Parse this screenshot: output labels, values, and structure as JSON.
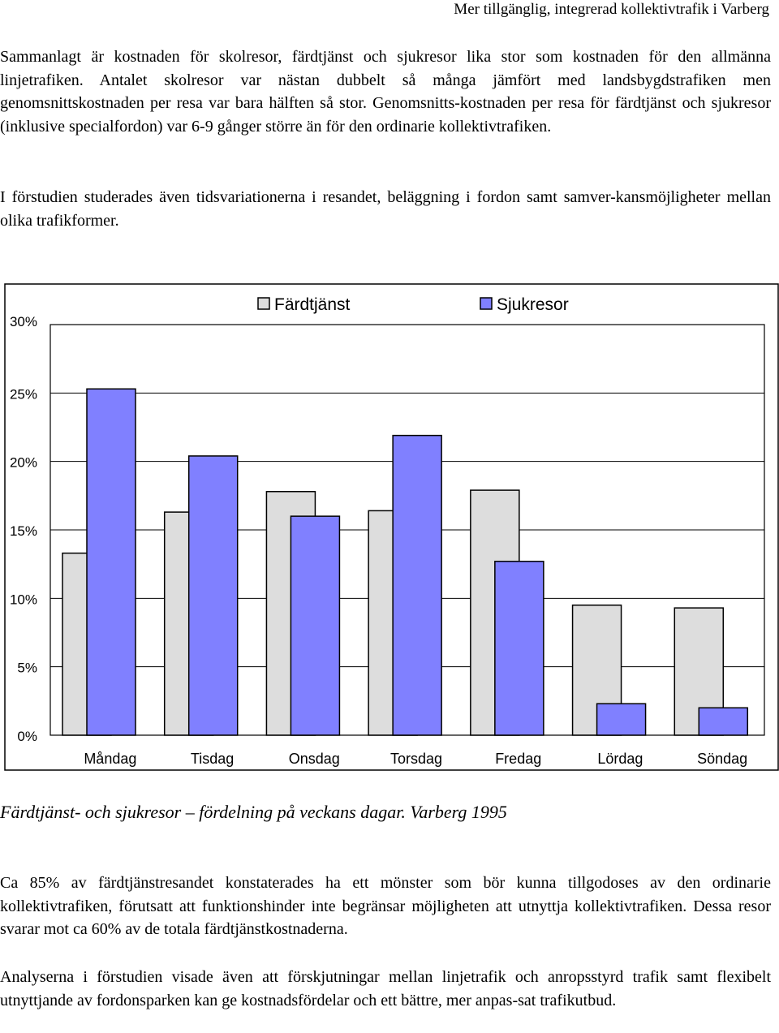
{
  "header": {
    "running_title": "Mer tillgänglig, integrerad kollektivtrafik i Varberg"
  },
  "paragraphs": {
    "p1": "Sammanlagt är kostnaden för skolresor, färdtjänst och sjukresor lika stor som kostnaden för den allmänna linjetrafiken. Antalet skolresor var nästan dubbelt så många jämfört med landsbygdstrafiken men genomsnittskostnaden per resa var bara hälften så stor. Genomsnitts-kostnaden per resa för färdtjänst och sjukresor (inklusive specialfordon) var 6-9 gånger större än för den ordinarie kollektivtrafiken.",
    "p2": "I förstudien studerades även tidsvariationerna i resandet, beläggning i fordon samt samver-kansmöjligheter mellan olika trafikformer.",
    "p3": "Ca 85% av färdtjänstresandet konstaterades ha ett mönster som bör kunna tillgodoses av den ordinarie kollektivtrafiken, förutsatt att funktionshinder inte begränsar möjligheten att utnyttja kollektivtrafiken. Dessa resor svarar mot ca 60% av de totala färdtjänstkostnaderna.",
    "p4": "Analyserna i förstudien visade även att förskjutningar mellan linjetrafik och anropsstyrd trafik samt flexibelt utnyttjande av fordonsparken kan ge kostnadsfördelar och ett bättre, mer anpas-sat trafikutbud."
  },
  "caption": "Färdtjänst- och sjukresor – fördelning på veckans dagar. Varberg 1995",
  "chart_data": {
    "type": "bar",
    "categories": [
      "Måndag",
      "Tisdag",
      "Onsdag",
      "Torsdag",
      "Fredag",
      "Lördag",
      "Söndag"
    ],
    "series": [
      {
        "name": "Färdtjänst",
        "color": "#dddddd",
        "values": [
          13.3,
          16.3,
          17.8,
          16.4,
          17.9,
          9.5,
          9.3
        ]
      },
      {
        "name": "Sjukresor",
        "color": "#8080ff",
        "values": [
          25.3,
          20.4,
          16.0,
          21.9,
          12.7,
          2.3,
          2.0
        ]
      }
    ],
    "ylim": [
      0,
      30
    ],
    "yticks": [
      "0%",
      "5%",
      "10%",
      "15%",
      "20%",
      "25%",
      "30%"
    ],
    "legend_position": "top",
    "grid": true
  }
}
